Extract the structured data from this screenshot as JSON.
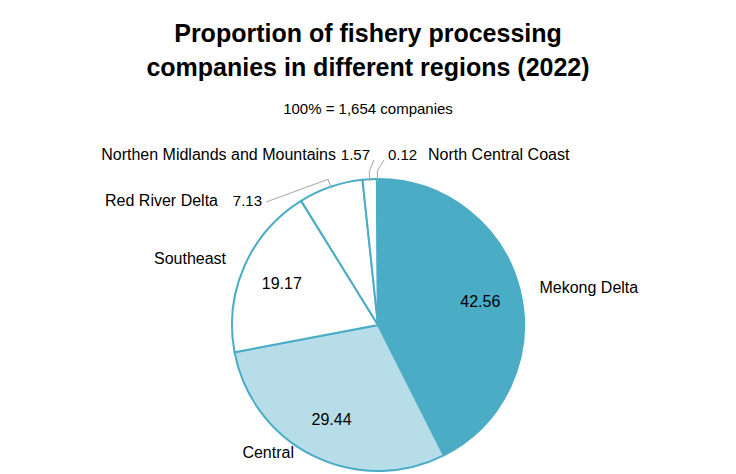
{
  "chart_data": {
    "type": "pie",
    "title": "Proportion of fishery processing companies in different regions (2022)",
    "subtitle": "100% = 1,654 companies",
    "categories": [
      "Mekong Delta",
      "Central",
      "Southeast",
      "Red River Delta",
      "Northen Midlands and Mountains",
      "North Central Coast"
    ],
    "values": [
      42.56,
      29.44,
      19.17,
      7.13,
      1.57,
      0.12
    ],
    "colors": [
      "#4bacc6",
      "#b7dde8",
      "#ffffff",
      "#ffffff",
      "#ffffff",
      "#ffffff"
    ],
    "data_labels": true
  }
}
